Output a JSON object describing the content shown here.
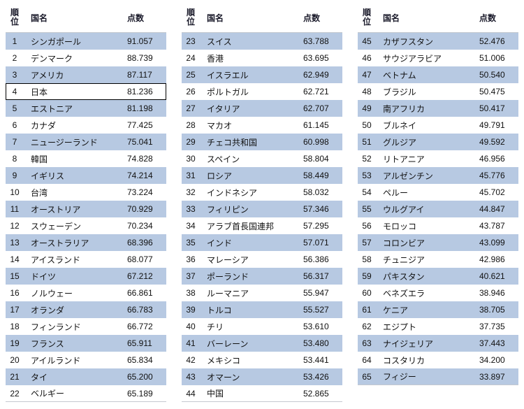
{
  "colors": {
    "stripe": "#b7c9e2",
    "row_bg": "#ffffff",
    "text": "#111111",
    "header_text": "#1a1a2a",
    "border": "#c5c9d0"
  },
  "headers": {
    "rank": "順位",
    "country": "国名",
    "score": "点数"
  },
  "highlight_rank": 4,
  "rows_per_column": 22,
  "rows": [
    {
      "rank": 1,
      "country": "シンガポール",
      "score": "91.057"
    },
    {
      "rank": 2,
      "country": "デンマーク",
      "score": "88.739"
    },
    {
      "rank": 3,
      "country": "アメリカ",
      "score": "87.117"
    },
    {
      "rank": 4,
      "country": "日本",
      "score": "81.236"
    },
    {
      "rank": 5,
      "country": "エストニア",
      "score": "81.198"
    },
    {
      "rank": 6,
      "country": "カナダ",
      "score": "77.425"
    },
    {
      "rank": 7,
      "country": "ニュージーランド",
      "score": "75.041"
    },
    {
      "rank": 8,
      "country": "韓国",
      "score": "74.828"
    },
    {
      "rank": 9,
      "country": "イギリス",
      "score": "74.214"
    },
    {
      "rank": 10,
      "country": "台湾",
      "score": "73.224"
    },
    {
      "rank": 11,
      "country": "オーストリア",
      "score": "70.929"
    },
    {
      "rank": 12,
      "country": "スウェーデン",
      "score": "70.234"
    },
    {
      "rank": 13,
      "country": "オーストラリア",
      "score": "68.396"
    },
    {
      "rank": 14,
      "country": "アイスランド",
      "score": "68.077"
    },
    {
      "rank": 15,
      "country": "ドイツ",
      "score": "67.212"
    },
    {
      "rank": 16,
      "country": "ノルウェー",
      "score": "66.861"
    },
    {
      "rank": 17,
      "country": "オランダ",
      "score": "66.783"
    },
    {
      "rank": 18,
      "country": "フィンランド",
      "score": "66.772"
    },
    {
      "rank": 19,
      "country": "フランス",
      "score": "65.911"
    },
    {
      "rank": 20,
      "country": "アイルランド",
      "score": "65.834"
    },
    {
      "rank": 21,
      "country": "タイ",
      "score": "65.200"
    },
    {
      "rank": 22,
      "country": "ベルギー",
      "score": "65.189"
    },
    {
      "rank": 23,
      "country": "スイス",
      "score": "63.788"
    },
    {
      "rank": 24,
      "country": "香港",
      "score": "63.695"
    },
    {
      "rank": 25,
      "country": "イスラエル",
      "score": "62.949"
    },
    {
      "rank": 26,
      "country": "ポルトガル",
      "score": "62.721"
    },
    {
      "rank": 27,
      "country": "イタリア",
      "score": "62.707"
    },
    {
      "rank": 28,
      "country": "マカオ",
      "score": "61.145"
    },
    {
      "rank": 29,
      "country": "チェコ共和国",
      "score": "60.998"
    },
    {
      "rank": 30,
      "country": "スペイン",
      "score": "58.804"
    },
    {
      "rank": 31,
      "country": "ロシア",
      "score": "58.449"
    },
    {
      "rank": 32,
      "country": "インドネシア",
      "score": "58.032"
    },
    {
      "rank": 33,
      "country": "フィリピン",
      "score": "57.346"
    },
    {
      "rank": 34,
      "country": "アラブ首長国連邦",
      "score": "57.295"
    },
    {
      "rank": 35,
      "country": "インド",
      "score": "57.071"
    },
    {
      "rank": 36,
      "country": "マレーシア",
      "score": "56.386"
    },
    {
      "rank": 37,
      "country": "ポーランド",
      "score": "56.317"
    },
    {
      "rank": 38,
      "country": "ルーマニア",
      "score": "55.947"
    },
    {
      "rank": 39,
      "country": "トルコ",
      "score": "55.527"
    },
    {
      "rank": 40,
      "country": "チリ",
      "score": "53.610"
    },
    {
      "rank": 41,
      "country": "バーレーン",
      "score": "53.480"
    },
    {
      "rank": 42,
      "country": "メキシコ",
      "score": "53.441"
    },
    {
      "rank": 43,
      "country": "オマーン",
      "score": "53.426"
    },
    {
      "rank": 44,
      "country": "中国",
      "score": "52.865"
    },
    {
      "rank": 45,
      "country": "カザフスタン",
      "score": "52.476"
    },
    {
      "rank": 46,
      "country": "サウジアラビア",
      "score": "51.006"
    },
    {
      "rank": 47,
      "country": "ベトナム",
      "score": "50.540"
    },
    {
      "rank": 48,
      "country": "ブラジル",
      "score": "50.475"
    },
    {
      "rank": 49,
      "country": "南アフリカ",
      "score": "50.417"
    },
    {
      "rank": 50,
      "country": "ブルネイ",
      "score": "49.791"
    },
    {
      "rank": 51,
      "country": "グルジア",
      "score": "49.592"
    },
    {
      "rank": 52,
      "country": "リトアニア",
      "score": "46.956"
    },
    {
      "rank": 53,
      "country": "アルゼンチン",
      "score": "45.776"
    },
    {
      "rank": 54,
      "country": "ペルー",
      "score": "45.702"
    },
    {
      "rank": 55,
      "country": "ウルグアイ",
      "score": "44.847"
    },
    {
      "rank": 56,
      "country": "モロッコ",
      "score": "43.787"
    },
    {
      "rank": 57,
      "country": "コロンビア",
      "score": "43.099"
    },
    {
      "rank": 58,
      "country": "チュニジア",
      "score": "42.986"
    },
    {
      "rank": 59,
      "country": "パキスタン",
      "score": "40.621"
    },
    {
      "rank": 60,
      "country": "ベネズエラ",
      "score": "38.946"
    },
    {
      "rank": 61,
      "country": "ケニア",
      "score": "38.705"
    },
    {
      "rank": 62,
      "country": "エジプト",
      "score": "37.735"
    },
    {
      "rank": 63,
      "country": "ナイジェリア",
      "score": "37.443"
    },
    {
      "rank": 64,
      "country": "コスタリカ",
      "score": "34.200"
    },
    {
      "rank": 65,
      "country": "フィジー",
      "score": "33.897"
    }
  ]
}
